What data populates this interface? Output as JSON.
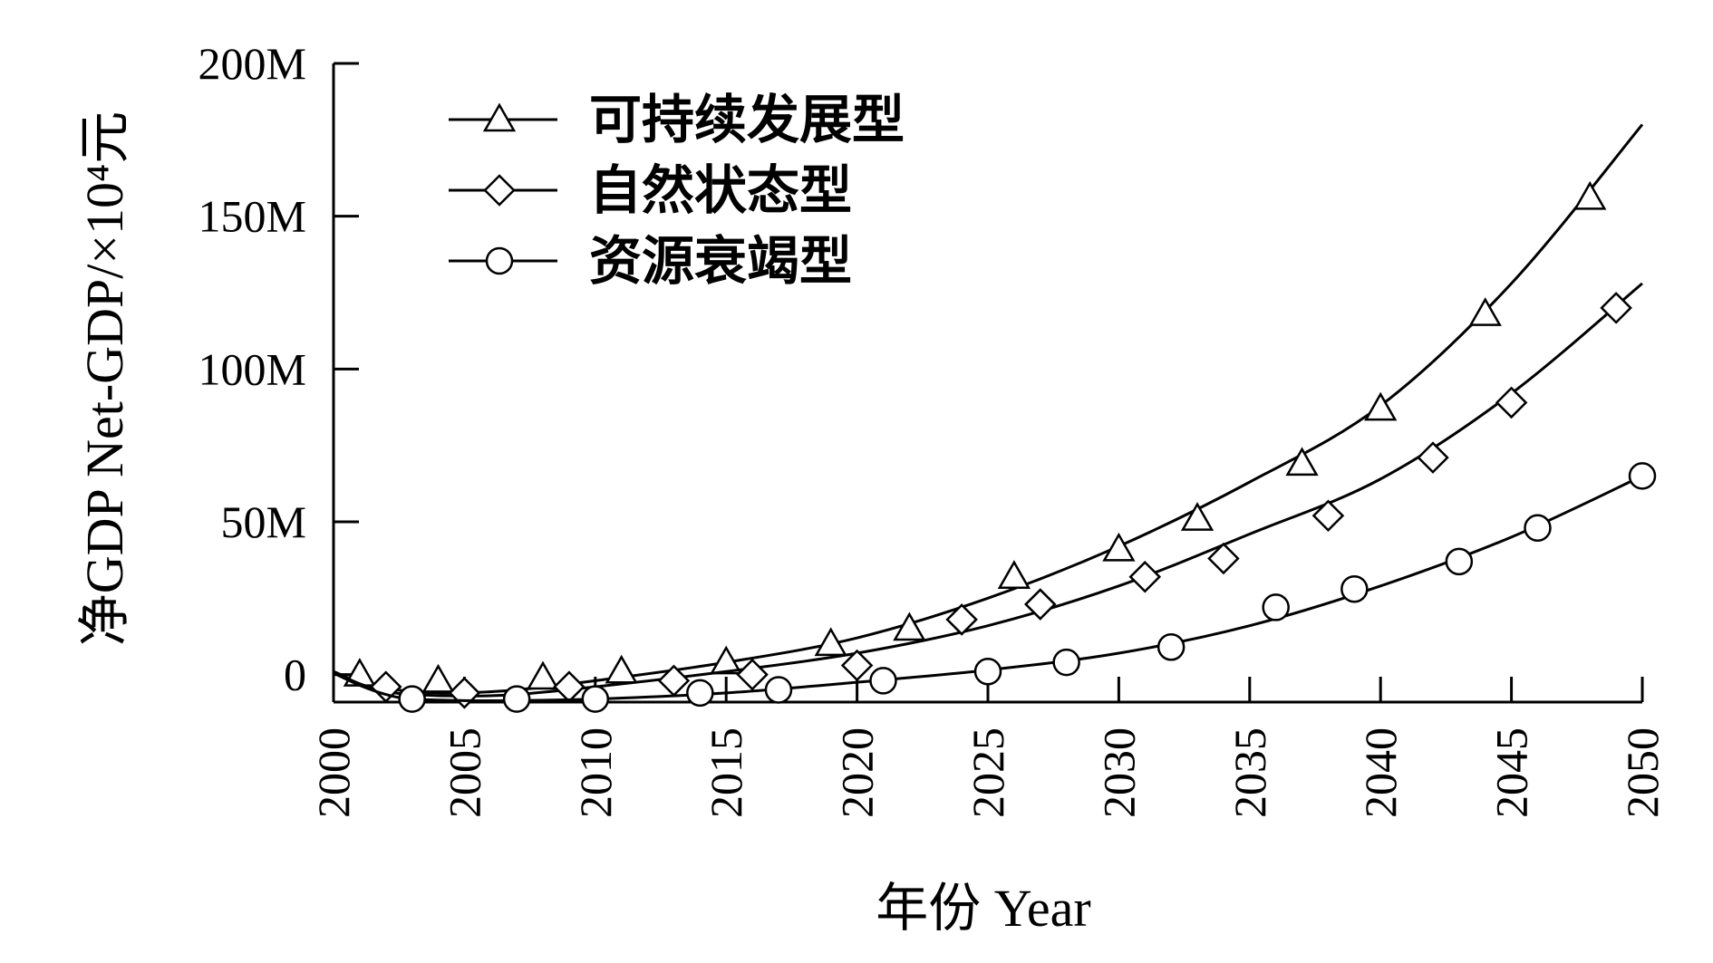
{
  "chart_data": {
    "type": "line",
    "xlabel": "年份 Year",
    "ylabel": "净GDP Net-GDP/×10⁴元",
    "xlim": [
      2000,
      2050
    ],
    "ylim": [
      -9,
      200
    ],
    "xticks": [
      "2000",
      "2005",
      "2010",
      "2015",
      "2020",
      "2025",
      "2030",
      "2035",
      "2040",
      "2045",
      "2050"
    ],
    "yticks": [
      {
        "value": 0,
        "label": "0"
      },
      {
        "value": 50,
        "label": "50M"
      },
      {
        "value": 100,
        "label": "100M"
      },
      {
        "value": 150,
        "label": "150M"
      },
      {
        "value": 200,
        "label": "200M"
      }
    ],
    "grid": false,
    "legend_position": "top-left",
    "series": [
      {
        "name": "可持续发展型",
        "marker": "triangle",
        "curve": {
          "x": [
            2000,
            2001,
            2002,
            2003,
            2004,
            2005,
            2007,
            2010,
            2015,
            2020,
            2025,
            2030,
            2035,
            2040,
            2045,
            2050
          ],
          "y": [
            1,
            -2.5,
            -4.5,
            -5.5,
            -6,
            -6,
            -5,
            -2,
            4,
            12,
            25,
            42,
            63,
            88,
            128,
            180
          ]
        },
        "points": {
          "x": [
            2001,
            2004,
            2008,
            2011,
            2015,
            2019,
            2022,
            2026,
            2030,
            2033,
            2037,
            2040,
            2044,
            2048
          ],
          "y": [
            0,
            -2,
            -1,
            1,
            4,
            10,
            15,
            32,
            41,
            51,
            69,
            87,
            118,
            156
          ]
        }
      },
      {
        "name": "自然状态型",
        "marker": "diamond",
        "curve": {
          "x": [
            2000,
            2001,
            2002,
            2003,
            2005,
            2007,
            2010,
            2015,
            2020,
            2025,
            2030,
            2035,
            2040,
            2045,
            2050
          ],
          "y": [
            1,
            -3,
            -5.5,
            -6.5,
            -7,
            -6.5,
            -4,
            1,
            7,
            16,
            29,
            46,
            64,
            92,
            128
          ]
        },
        "points": {
          "x": [
            2002,
            2005,
            2009,
            2013,
            2016,
            2020,
            2024,
            2027,
            2031,
            2034,
            2038,
            2042,
            2045,
            2049
          ],
          "y": [
            -4,
            -6,
            -4,
            -2,
            0,
            3,
            18,
            23,
            32,
            38,
            52,
            71,
            89,
            120
          ]
        }
      },
      {
        "name": "资源衰竭型",
        "marker": "circle",
        "curve": {
          "x": [
            2000,
            2001,
            2002,
            2003,
            2005,
            2007,
            2010,
            2015,
            2020,
            2025,
            2030,
            2035,
            2040,
            2045,
            2050
          ],
          "y": [
            0.5,
            -3.5,
            -6.5,
            -8,
            -8.5,
            -8.5,
            -8,
            -6,
            -2.5,
            1.5,
            7,
            16,
            29,
            45,
            65
          ]
        },
        "points": {
          "x": [
            2003,
            2007,
            2010,
            2014,
            2017,
            2021,
            2025,
            2028,
            2032,
            2036,
            2039,
            2043,
            2046,
            2050
          ],
          "y": [
            -8,
            -8,
            -8,
            -6,
            -5,
            -2,
            1,
            4,
            9,
            22,
            28,
            37,
            48,
            65
          ]
        }
      }
    ]
  }
}
